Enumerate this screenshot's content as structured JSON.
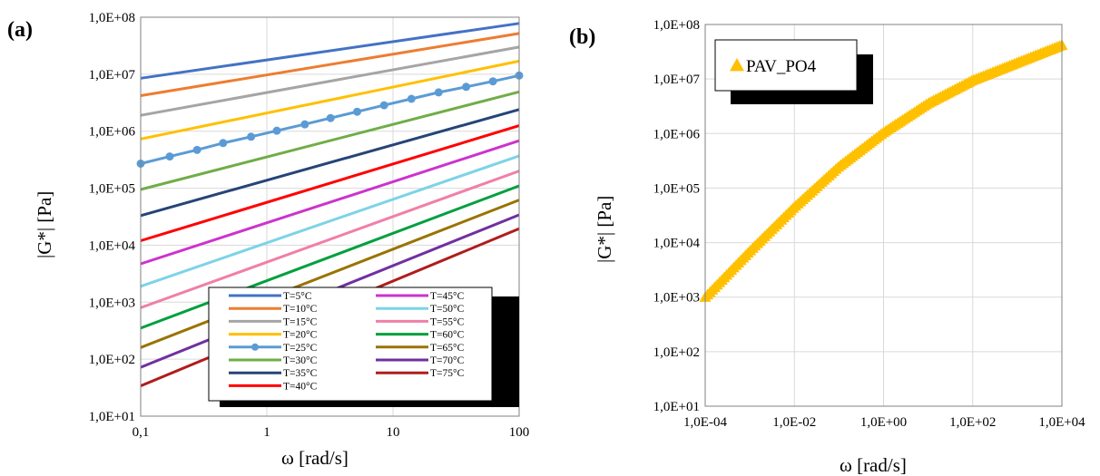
{
  "chart_data": [
    {
      "panel_label": "(a)",
      "type": "line",
      "xlabel": "ω [rad/s]",
      "ylabel": "|G*| [Pa]",
      "x_scale": "log",
      "y_scale": "log",
      "xlim": [
        0.1,
        100
      ],
      "ylim": [
        10,
        100000000
      ],
      "x_ticks": [
        "0,1",
        "1",
        "10",
        "100"
      ],
      "y_ticks": [
        "1,0E+01",
        "1,0E+02",
        "1,0E+03",
        "1,0E+04",
        "1,0E+05",
        "1,0E+06",
        "1,0E+07",
        "1,0E+08"
      ],
      "grid": true,
      "legend_position": "bottom-right",
      "series": [
        {
          "name": "T=5°C",
          "color": "#4472C4",
          "x": [
            0.1,
            100
          ],
          "y": [
            8500000,
            78000000
          ]
        },
        {
          "name": "T=10°C",
          "color": "#ED7D31",
          "x": [
            0.1,
            100
          ],
          "y": [
            4200000,
            52000000
          ]
        },
        {
          "name": "T=15°C",
          "color": "#A5A5A5",
          "x": [
            0.1,
            100
          ],
          "y": [
            1900000,
            30000000
          ]
        },
        {
          "name": "T=20°C",
          "color": "#FFC000",
          "x": [
            0.1,
            100
          ],
          "y": [
            730000,
            17000000
          ]
        },
        {
          "name": "T=25°C",
          "color": "#5B9BD5",
          "markers": true,
          "x": [
            0.1,
            0.17,
            0.28,
            0.45,
            0.75,
            1.2,
            2,
            3.2,
            5.2,
            8.5,
            14,
            23,
            38,
            62,
            100
          ],
          "y": [
            270000,
            360000,
            470000,
            620000,
            800000,
            1020000,
            1320000,
            1700000,
            2200000,
            2850000,
            3700000,
            4800000,
            6000000,
            7500000,
            9500000
          ]
        },
        {
          "name": "T=30°C",
          "color": "#70AD47",
          "x": [
            0.1,
            100
          ],
          "y": [
            95000,
            4900000
          ]
        },
        {
          "name": "T=35°C",
          "color": "#264478",
          "x": [
            0.1,
            100
          ],
          "y": [
            33000,
            2400000
          ]
        },
        {
          "name": "T=40°C",
          "color": "#FF0000",
          "x": [
            0.1,
            100
          ],
          "y": [
            12000,
            1250000
          ]
        },
        {
          "name": "T=45°C",
          "color": "#CC33CC",
          "x": [
            0.1,
            100
          ],
          "y": [
            4700,
            680000
          ]
        },
        {
          "name": "T=50°C",
          "color": "#7DD3E8",
          "x": [
            0.1,
            100
          ],
          "y": [
            1900,
            370000
          ]
        },
        {
          "name": "T=55°C",
          "color": "#F07FA8",
          "x": [
            0.1,
            100
          ],
          "y": [
            800,
            200000
          ]
        },
        {
          "name": "T=60°C",
          "color": "#00A03E",
          "x": [
            0.1,
            100
          ],
          "y": [
            350,
            110000
          ]
        },
        {
          "name": "T=65°C",
          "color": "#997300",
          "x": [
            0.1,
            100
          ],
          "y": [
            160,
            62000
          ]
        },
        {
          "name": "T=70°C",
          "color": "#7030A0",
          "x": [
            0.1,
            100
          ],
          "y": [
            72,
            34000
          ]
        },
        {
          "name": "T=75°C",
          "color": "#B01C1C",
          "x": [
            0.1,
            100
          ],
          "y": [
            34,
            19500
          ]
        }
      ]
    },
    {
      "panel_label": "(b)",
      "type": "scatter",
      "xlabel": "ω [rad/s]",
      "ylabel": "|G*| [Pa]",
      "x_scale": "log",
      "y_scale": "log",
      "xlim": [
        0.0001,
        10000
      ],
      "ylim": [
        10,
        100000000
      ],
      "x_ticks": [
        "1,0E-04",
        "1,0E-02",
        "1,0E+00",
        "1,0E+02",
        "1,0E+04"
      ],
      "y_ticks": [
        "1,0E+01",
        "1,0E+02",
        "1,0E+03",
        "1,0E+04",
        "1,0E+05",
        "1,0E+06",
        "1,0E+07",
        "1,0E+08"
      ],
      "grid": true,
      "legend_position": "top-left",
      "series": [
        {
          "name": "PAV_PO4",
          "color": "#FFC000",
          "marker": "triangle",
          "x": [
            0.0001,
            0.001,
            0.01,
            0.1,
            1,
            10,
            100,
            1000,
            10000
          ],
          "y": [
            1000,
            7000,
            45000,
            250000,
            1050000,
            3600000,
            9500000,
            20000000,
            42000000
          ]
        }
      ]
    }
  ]
}
